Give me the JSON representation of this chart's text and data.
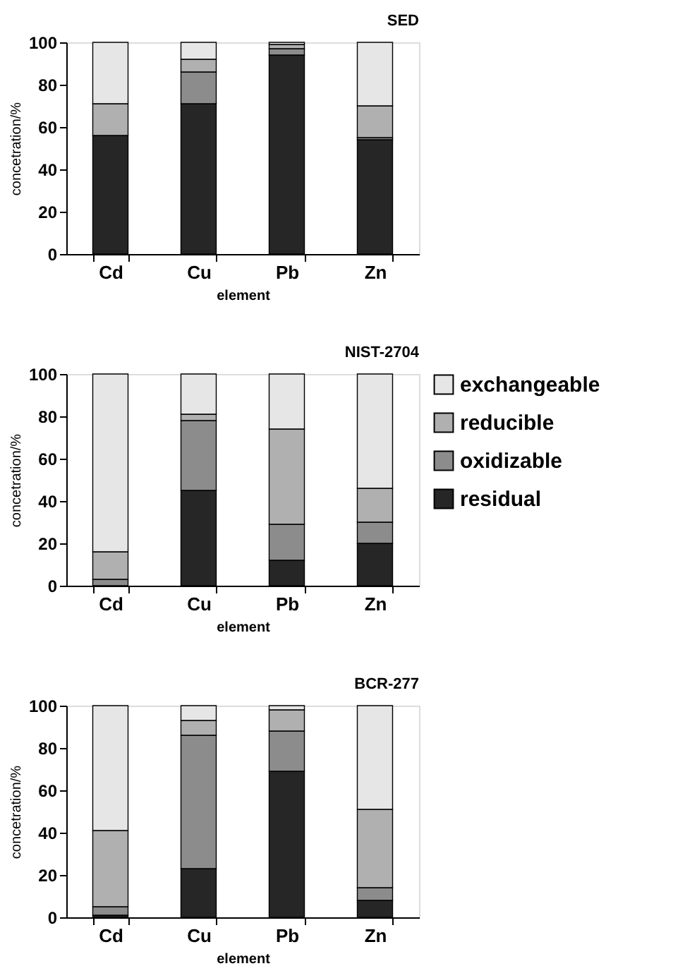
{
  "chart_data": [
    {
      "type": "bar",
      "title": "SED",
      "xlabel": "element",
      "ylabel": "concetration/%",
      "categories": [
        "Cd",
        "Cu",
        "Pb",
        "Zn"
      ],
      "stacked": true,
      "ylim": [
        0,
        100
      ],
      "yticks": [
        0,
        20,
        40,
        60,
        80,
        100
      ],
      "grid": false,
      "legend": false,
      "series": [
        {
          "color": "#262626",
          "values": [
            56,
            71,
            94,
            54
          ]
        },
        {
          "color": "#8c8c8c",
          "values": [
            0,
            15,
            3,
            1
          ]
        },
        {
          "color": "#b0b0b0",
          "values": [
            15,
            6,
            2,
            15
          ]
        },
        {
          "color": "#e6e6e6",
          "values": [
            29,
            8,
            1,
            30
          ]
        }
      ]
    },
    {
      "type": "bar",
      "title": "NIST-2704",
      "xlabel": "element",
      "ylabel": "concetration/%",
      "categories": [
        "Cd",
        "Cu",
        "Pb",
        "Zn"
      ],
      "stacked": true,
      "ylim": [
        0,
        100
      ],
      "yticks": [
        0,
        20,
        40,
        60,
        80,
        100
      ],
      "grid": false,
      "legend": "right",
      "series": [
        {
          "name": "residual",
          "color": "#262626",
          "values": [
            0,
            45,
            12,
            20
          ]
        },
        {
          "name": "oxidizable",
          "color": "#8c8c8c",
          "values": [
            3,
            33,
            17,
            10
          ]
        },
        {
          "name": "reducible",
          "color": "#b0b0b0",
          "values": [
            13,
            3,
            45,
            16
          ]
        },
        {
          "name": "exchangeable",
          "color": "#e6e6e6",
          "values": [
            84,
            19,
            26,
            54
          ]
        }
      ]
    },
    {
      "type": "bar",
      "title": "BCR-277",
      "xlabel": "element",
      "ylabel": "concetration/%",
      "categories": [
        "Cd",
        "Cu",
        "Pb",
        "Zn"
      ],
      "stacked": true,
      "ylim": [
        0,
        100
      ],
      "yticks": [
        0,
        20,
        40,
        60,
        80,
        100
      ],
      "grid": false,
      "legend": false,
      "series": [
        {
          "color": "#262626",
          "values": [
            1,
            23,
            69,
            8
          ]
        },
        {
          "color": "#8c8c8c",
          "values": [
            4,
            63,
            19,
            6
          ]
        },
        {
          "color": "#b0b0b0",
          "values": [
            36,
            7,
            10,
            37
          ]
        },
        {
          "color": "#e6e6e6",
          "values": [
            59,
            7,
            2,
            49
          ]
        }
      ]
    }
  ]
}
